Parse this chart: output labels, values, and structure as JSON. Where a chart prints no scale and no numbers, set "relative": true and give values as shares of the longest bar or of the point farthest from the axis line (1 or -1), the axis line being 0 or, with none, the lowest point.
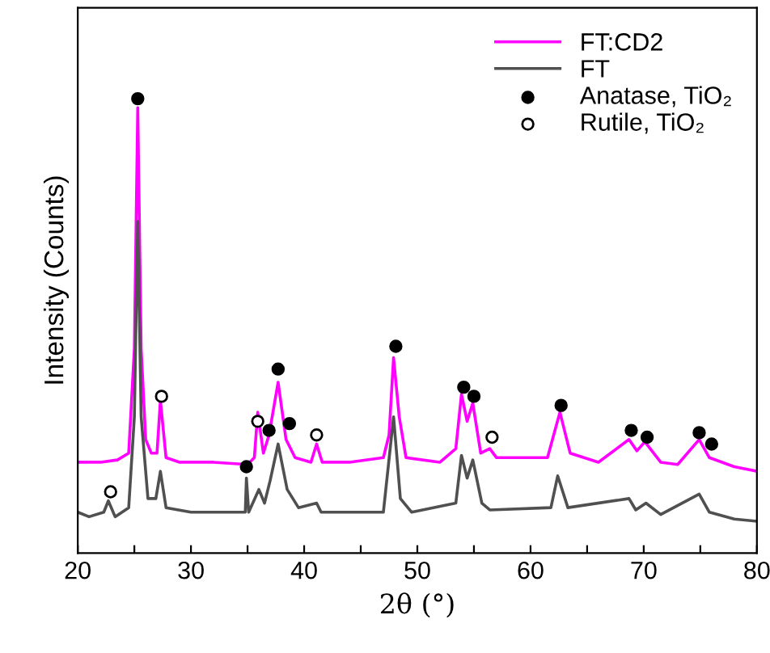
{
  "chart_data": {
    "type": "line",
    "relative": true,
    "xlabel": "2θ (°)",
    "ylabel": "Intensity (Counts)",
    "xlim": [
      20,
      80
    ],
    "xticks": [
      20,
      {
        "value": 25,
        "label": null
      },
      30,
      {
        "value": 35,
        "label": null
      },
      40,
      {
        "value": 45,
        "label": null
      },
      50,
      {
        "value": 55,
        "label": null
      },
      60,
      {
        "value": 65,
        "label": null
      },
      70,
      {
        "value": 75,
        "label": null
      },
      80
    ],
    "legend": "top right",
    "grid": false,
    "tick_labels": "x",
    "series": [
      {
        "name": "FT:CD2",
        "color": "#ff00ff",
        "marker": "none",
        "x": [
          20,
          22,
          23.5,
          24.5,
          25.0,
          25.3,
          25.6,
          26.0,
          26.5,
          27.0,
          27.3,
          27.8,
          29,
          32,
          35,
          35.6,
          35.9,
          36.4,
          36.9,
          37.7,
          38.4,
          39.2,
          40.6,
          41.1,
          41.6,
          44,
          47,
          47.5,
          47.9,
          48.4,
          49,
          52,
          53.4,
          53.9,
          54.4,
          54.9,
          55.6,
          56.4,
          57,
          61.5,
          62.6,
          63.5,
          66,
          68.7,
          69.4,
          70.1,
          71.5,
          73,
          74.9,
          75.8,
          78,
          80
        ],
        "values": [
          0.2,
          0.2,
          0.205,
          0.22,
          0.45,
          0.98,
          0.45,
          0.25,
          0.22,
          0.22,
          0.336,
          0.21,
          0.2,
          0.2,
          0.195,
          0.21,
          0.31,
          0.22,
          0.26,
          0.376,
          0.25,
          0.21,
          0.2,
          0.24,
          0.2,
          0.2,
          0.21,
          0.26,
          0.43,
          0.3,
          0.21,
          0.2,
          0.23,
          0.35,
          0.29,
          0.33,
          0.22,
          0.23,
          0.21,
          0.21,
          0.31,
          0.22,
          0.2,
          0.25,
          0.225,
          0.245,
          0.2,
          0.195,
          0.25,
          0.21,
          0.19,
          0.18
        ]
      },
      {
        "name": "FT",
        "color": "#505050",
        "marker": "none",
        "x": [
          20,
          21,
          22.3,
          22.7,
          23.3,
          24.5,
          25.0,
          25.3,
          25.6,
          26.2,
          26.9,
          27.3,
          27.8,
          30,
          33,
          34.8,
          34.9,
          35.1,
          36.0,
          36.5,
          37.0,
          37.7,
          38.5,
          39.5,
          41.1,
          41.5,
          47,
          47.9,
          48.5,
          49.5,
          53.4,
          53.9,
          54.4,
          54.9,
          55.7,
          56.4,
          61.8,
          62.4,
          63.3,
          68.7,
          69.3,
          70.2,
          71.5,
          74.9,
          75.8,
          78,
          80
        ],
        "values": [
          0.09,
          0.08,
          0.09,
          0.115,
          0.08,
          0.1,
          0.3,
          0.73,
          0.3,
          0.12,
          0.12,
          0.18,
          0.1,
          0.09,
          0.09,
          0.09,
          0.165,
          0.09,
          0.14,
          0.11,
          0.16,
          0.24,
          0.14,
          0.1,
          0.11,
          0.09,
          0.09,
          0.3,
          0.12,
          0.09,
          0.11,
          0.215,
          0.165,
          0.205,
          0.11,
          0.095,
          0.1,
          0.17,
          0.1,
          0.12,
          0.095,
          0.11,
          0.085,
          0.13,
          0.09,
          0.075,
          0.07
        ]
      },
      {
        "name": "Anatase, TiO₂",
        "color": "#000000",
        "type": "scatter",
        "marker": "circle",
        "x": [
          25.3,
          34.9,
          36.9,
          37.7,
          38.7,
          48.1,
          54.1,
          55.0,
          62.7,
          68.9,
          70.3,
          74.9,
          76.0
        ],
        "values": [
          1.0,
          0.19,
          0.27,
          0.405,
          0.285,
          0.455,
          0.365,
          0.345,
          0.325,
          0.27,
          0.255,
          0.265,
          0.24
        ]
      },
      {
        "name": "Rutile, TiO₂",
        "color": "#ffffff",
        "type": "scatter",
        "marker": "circle",
        "x": [
          22.9,
          27.4,
          35.9,
          41.1,
          56.6
        ],
        "values": [
          0.135,
          0.345,
          0.29,
          0.26,
          0.255
        ]
      }
    ]
  }
}
